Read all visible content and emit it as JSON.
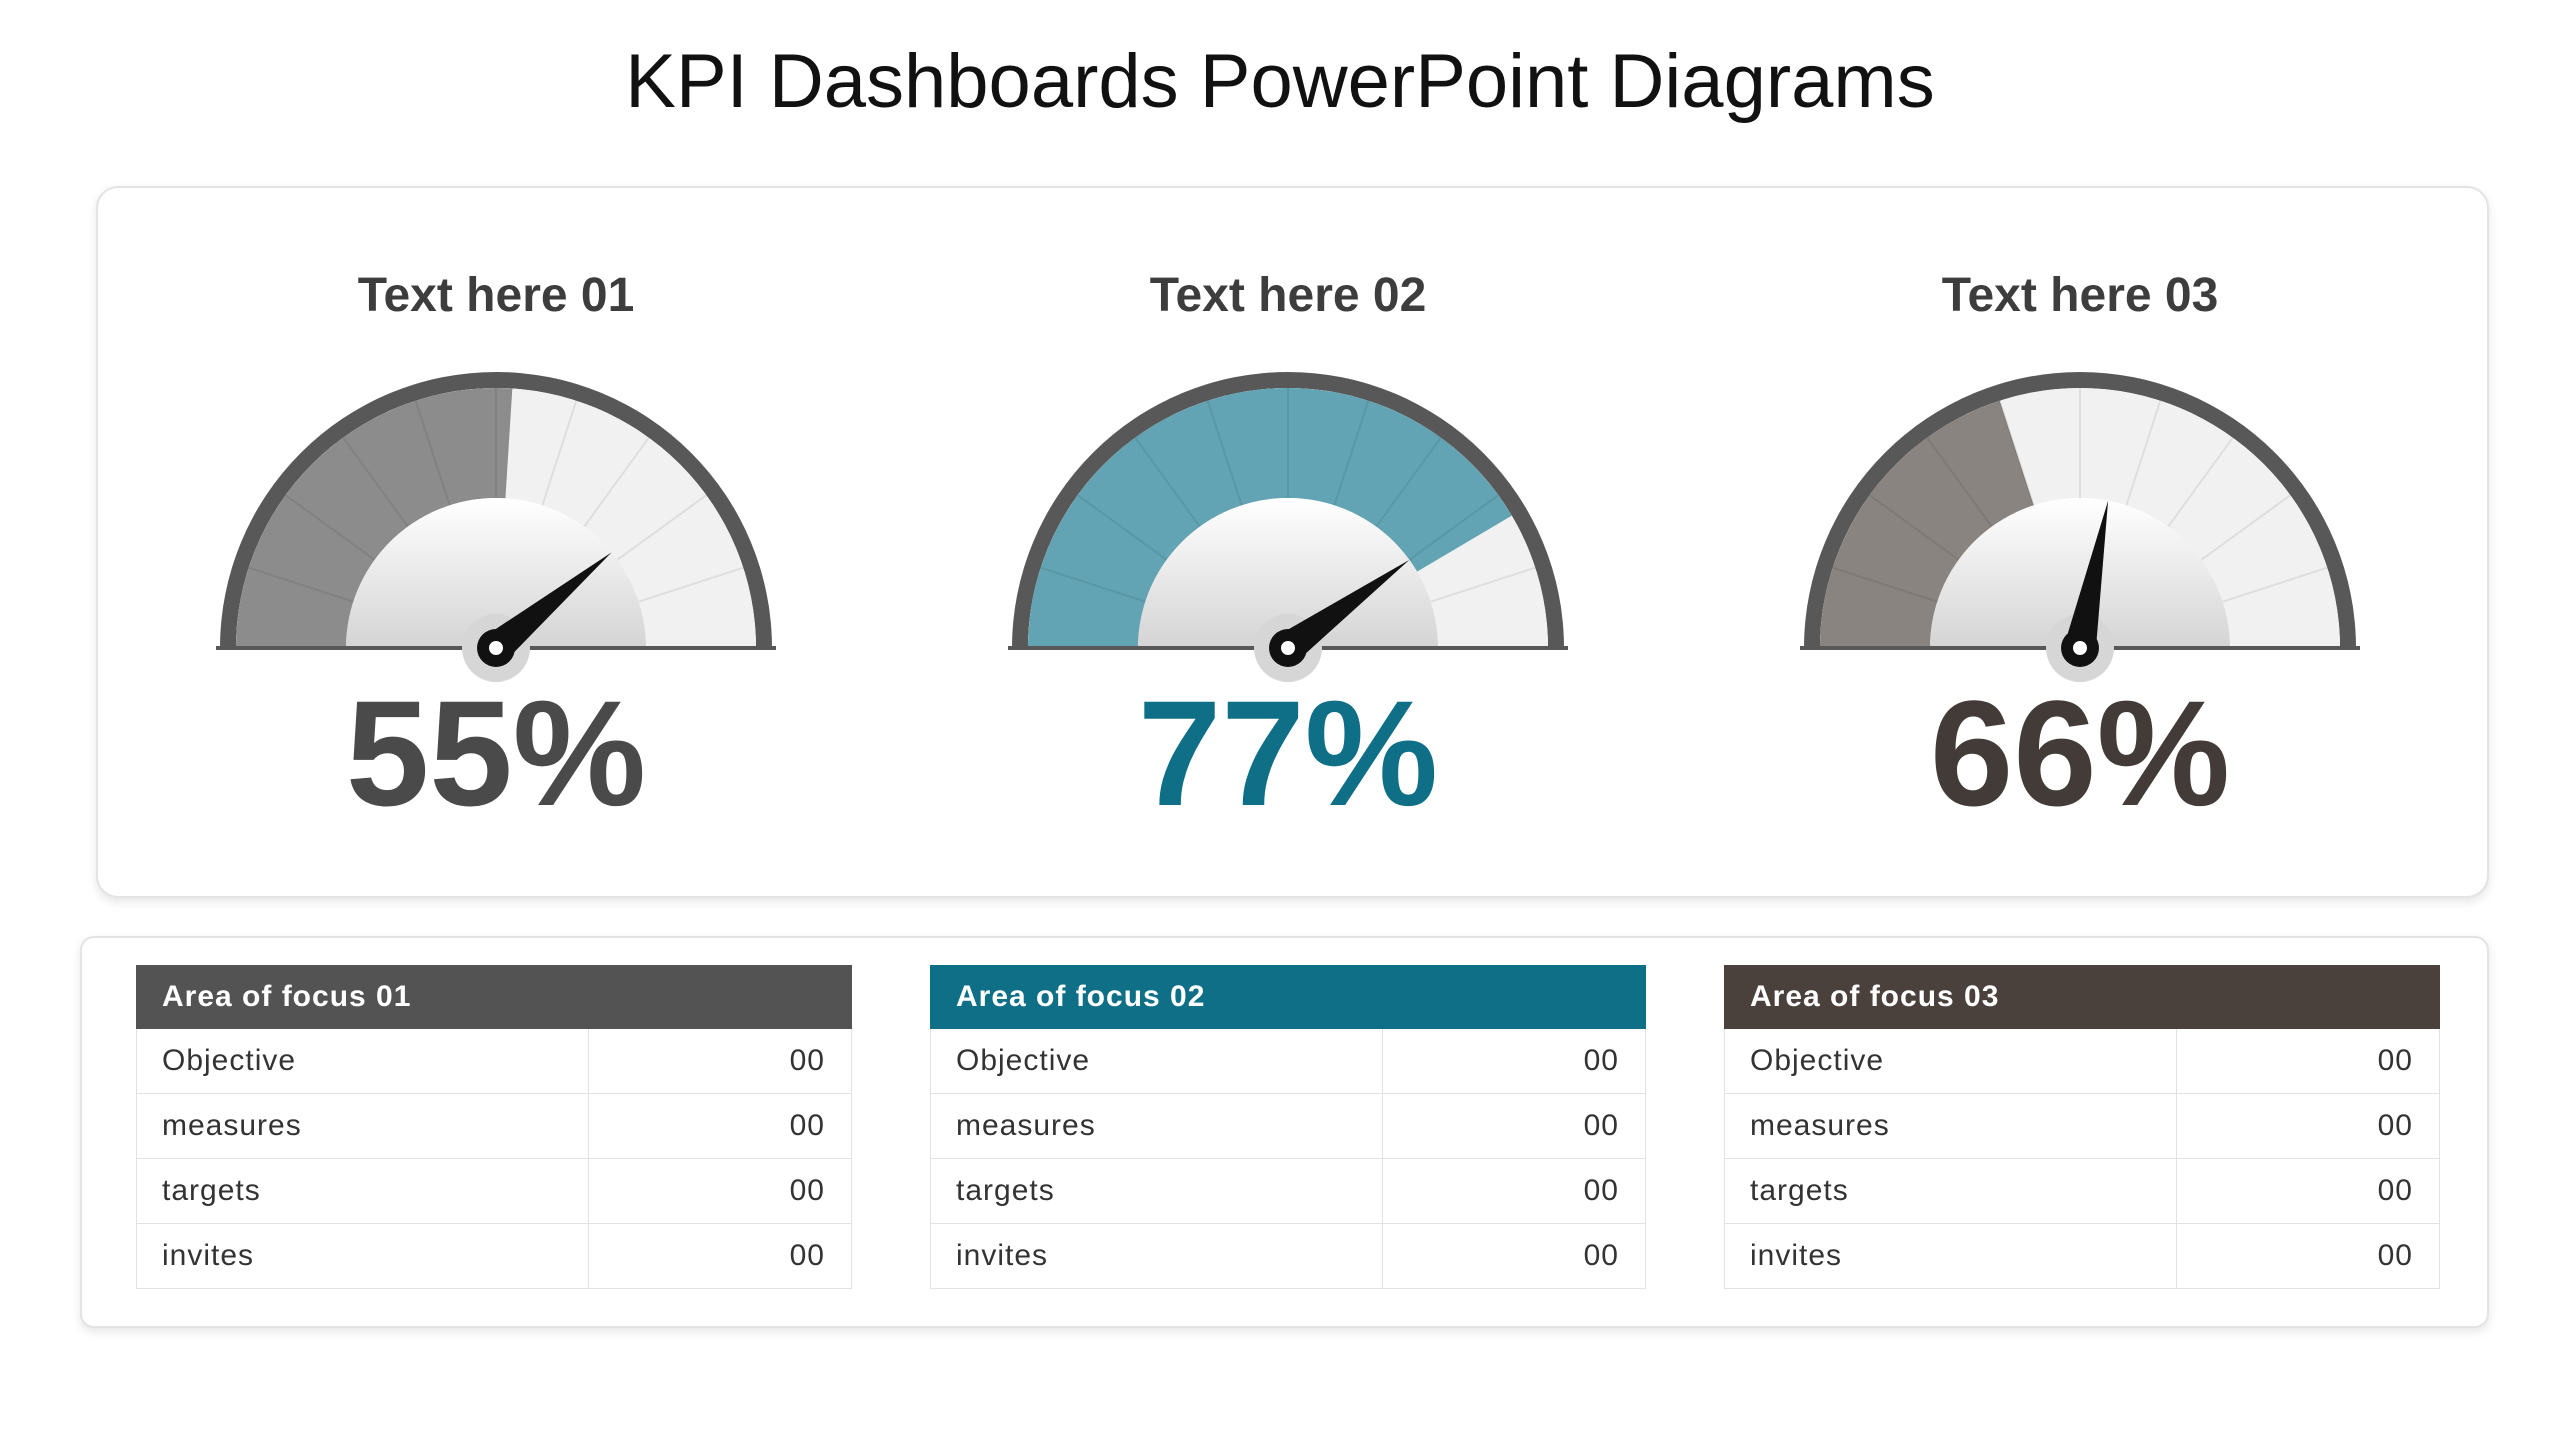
{
  "title": "KPI Dashboards PowerPoint Diagrams",
  "kpis": [
    {
      "label": "Text here 01",
      "value_text": "55%",
      "value": 55,
      "fill_fraction": 0.52,
      "needle_fraction": 0.78,
      "color": "#8c8c8c",
      "text_color": "#4a4a4a"
    },
    {
      "label": "Text here 02",
      "value_text": "77%",
      "value": 77,
      "fill_fraction": 0.83,
      "needle_fraction": 0.8,
      "color": "#62a4b3",
      "text_color": "#0e6f87"
    },
    {
      "label": "Text here 03",
      "value_text": "66%",
      "value": 66,
      "fill_fraction": 0.4,
      "needle_fraction": 0.56,
      "color": "#8a8480",
      "text_color": "#433b37"
    }
  ],
  "tables": [
    {
      "header": "Area of focus  01",
      "header_color": "#535353",
      "rows": [
        {
          "label": "Objective",
          "value": "00"
        },
        {
          "label": "measures",
          "value": "00"
        },
        {
          "label": "targets",
          "value": "00"
        },
        {
          "label": "invites",
          "value": "00"
        }
      ]
    },
    {
      "header": "Area of focus  02",
      "header_color": "#0e6f87",
      "rows": [
        {
          "label": "Objective",
          "value": "00"
        },
        {
          "label": "measures",
          "value": "00"
        },
        {
          "label": "targets",
          "value": "00"
        },
        {
          "label": "invites",
          "value": "00"
        }
      ]
    },
    {
      "header": "Area of focus  03",
      "header_color": "#4a403c",
      "rows": [
        {
          "label": "Objective",
          "value": "00"
        },
        {
          "label": "measures",
          "value": "00"
        },
        {
          "label": "targets",
          "value": "00"
        },
        {
          "label": "invites",
          "value": "00"
        }
      ]
    }
  ]
}
